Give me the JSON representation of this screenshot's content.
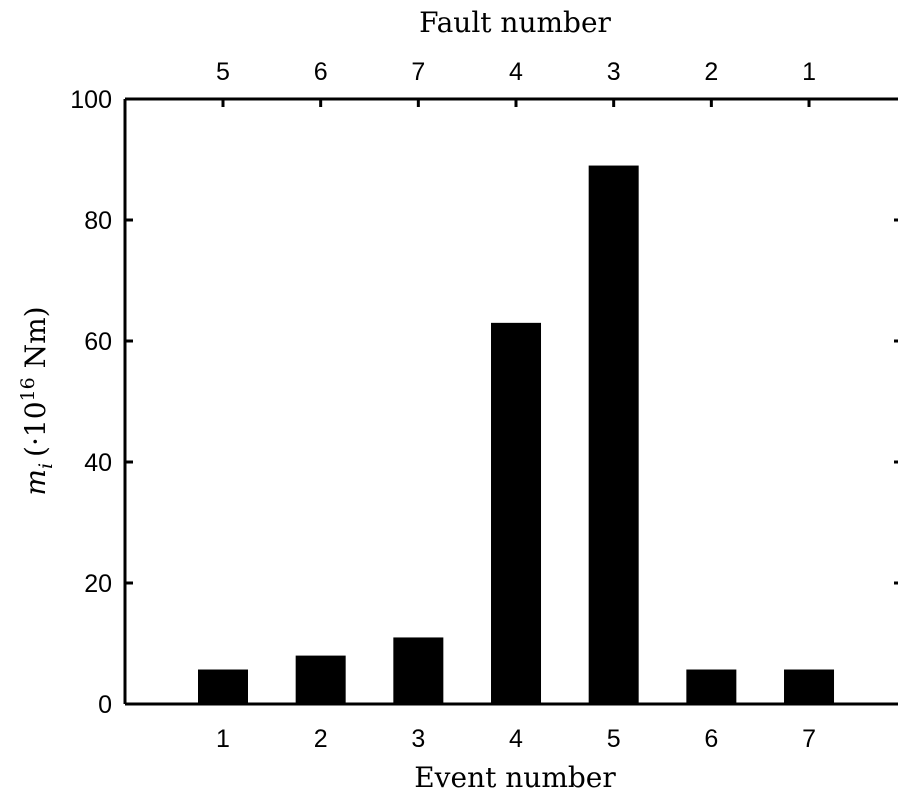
{
  "chart_data": {
    "type": "bar",
    "categories": [
      "1",
      "2",
      "3",
      "4",
      "5",
      "6",
      "7"
    ],
    "values": [
      5.7,
      8,
      11,
      63,
      89,
      5.7,
      5.7
    ],
    "top_categories": [
      "5",
      "6",
      "7",
      "4",
      "3",
      "2",
      "1"
    ],
    "xlabel": "Event number",
    "top_xlabel": "Fault number",
    "ylabel": {
      "symbol": "m",
      "subscript": "i",
      "prefix": "(·10",
      "exponent": "16",
      "unit": " Nm)"
    },
    "ylim": [
      0,
      100
    ],
    "yticks": [
      "0",
      "20",
      "40",
      "60",
      "80",
      "100"
    ],
    "bar_color": "#000000",
    "grid": false
  }
}
